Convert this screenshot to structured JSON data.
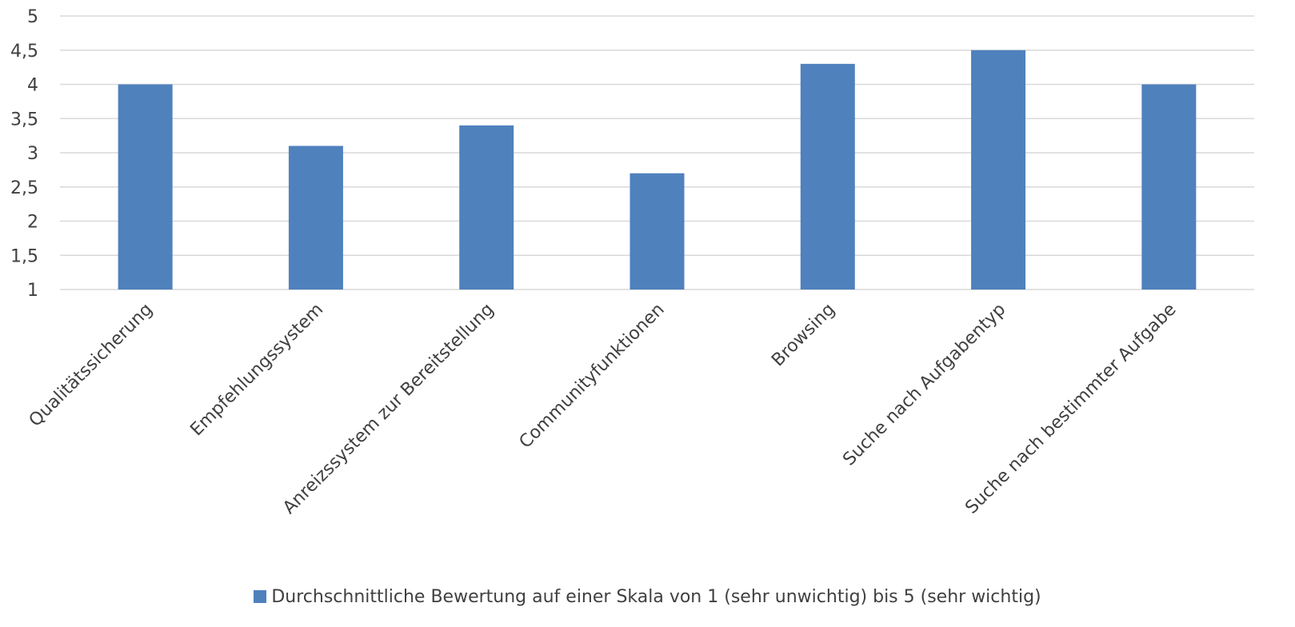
{
  "chart_data": {
    "type": "bar",
    "title": "",
    "xlabel": "",
    "ylabel": "",
    "categories": [
      "Qualitätssicherung",
      "Empfehlungssystem",
      "Anreizssystem zur Bereitstellung",
      "Communityfunktionen",
      "Browsing",
      "Suche nach Aufgabentyp",
      "Suche nach bestimmter Aufgabe"
    ],
    "series": [
      {
        "name": "Durchschnittliche Bewertung auf einer Skala von 1 (sehr unwichtig) bis 5 (sehr wichtig)",
        "values": [
          4.0,
          3.1,
          3.4,
          2.7,
          4.3,
          4.5,
          4.0
        ],
        "color": "#4f81bd"
      }
    ],
    "ylim": [
      1,
      5
    ],
    "yticks": [
      1,
      1.5,
      2,
      2.5,
      3,
      3.5,
      4,
      4.5,
      5
    ],
    "ytick_labels": [
      "1",
      "1,5",
      "2",
      "2,5",
      "3",
      "3,5",
      "4",
      "4,5",
      "5"
    ],
    "grid": true,
    "legend_position": "bottom",
    "colors": {
      "bar": "#4f81bd",
      "grid": "#d9d9d9",
      "text": "#404040"
    }
  },
  "legend": {
    "label": "Durchschnittliche Bewertung auf einer Skala von 1 (sehr unwichtig) bis 5 (sehr wichtig)"
  }
}
